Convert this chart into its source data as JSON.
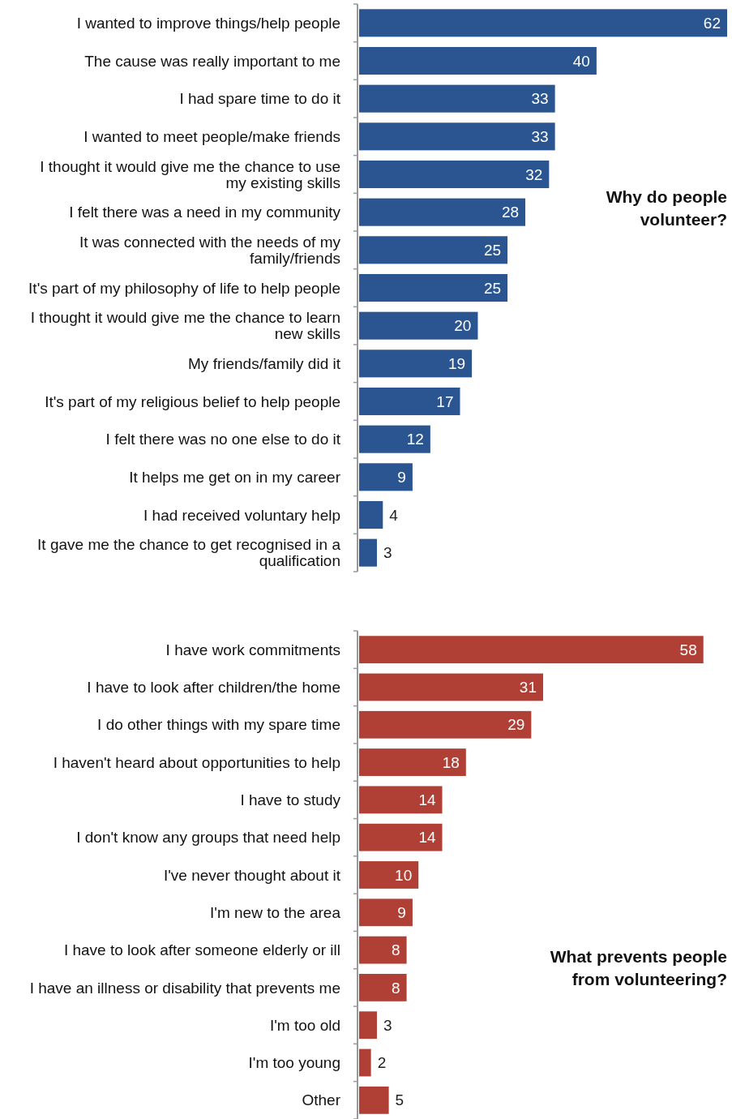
{
  "chart_data": [
    {
      "type": "bar",
      "orientation": "horizontal",
      "title": "Why do people volunteer?",
      "data_labels": true,
      "color": "#2a5590",
      "categories": [
        "I wanted to improve things/help people",
        "The cause was really important to me",
        "I had spare time to do it",
        "I wanted to meet people/make friends",
        "I thought it would give me the chance to use my existing skills",
        "I felt there was a need in my community",
        "It was connected with the needs of my family/friends",
        "It's part of my philosophy of life to help people",
        "I thought it would give me the chance to learn new skills",
        "My friends/family did it",
        "It's part of my religious belief to help people",
        "I felt there was no one else to do it",
        "It helps me get on in my career",
        "I had received voluntary help",
        "It gave me the chance to get recognised in a qualification"
      ],
      "values": [
        62,
        40,
        33,
        33,
        32,
        28,
        25,
        25,
        20,
        19,
        17,
        12,
        9,
        4,
        3
      ]
    },
    {
      "type": "bar",
      "orientation": "horizontal",
      "title": "What prevents people from volunteering?",
      "data_labels": true,
      "color": "#b03f35",
      "categories": [
        "I have work commitments",
        "I have to look after children/the home",
        "I do other things with my spare time",
        "I haven't heard about opportunities to help",
        "I have to study",
        "I don't know any groups that need help",
        "I've never thought about it",
        "I'm new to the area",
        "I have to look after someone elderly or ill",
        "I have an illness or disability that prevents me",
        "I'm too old",
        "I'm too young",
        "Other"
      ],
      "values": [
        58,
        31,
        29,
        18,
        14,
        14,
        10,
        9,
        8,
        8,
        3,
        2,
        5
      ]
    }
  ]
}
